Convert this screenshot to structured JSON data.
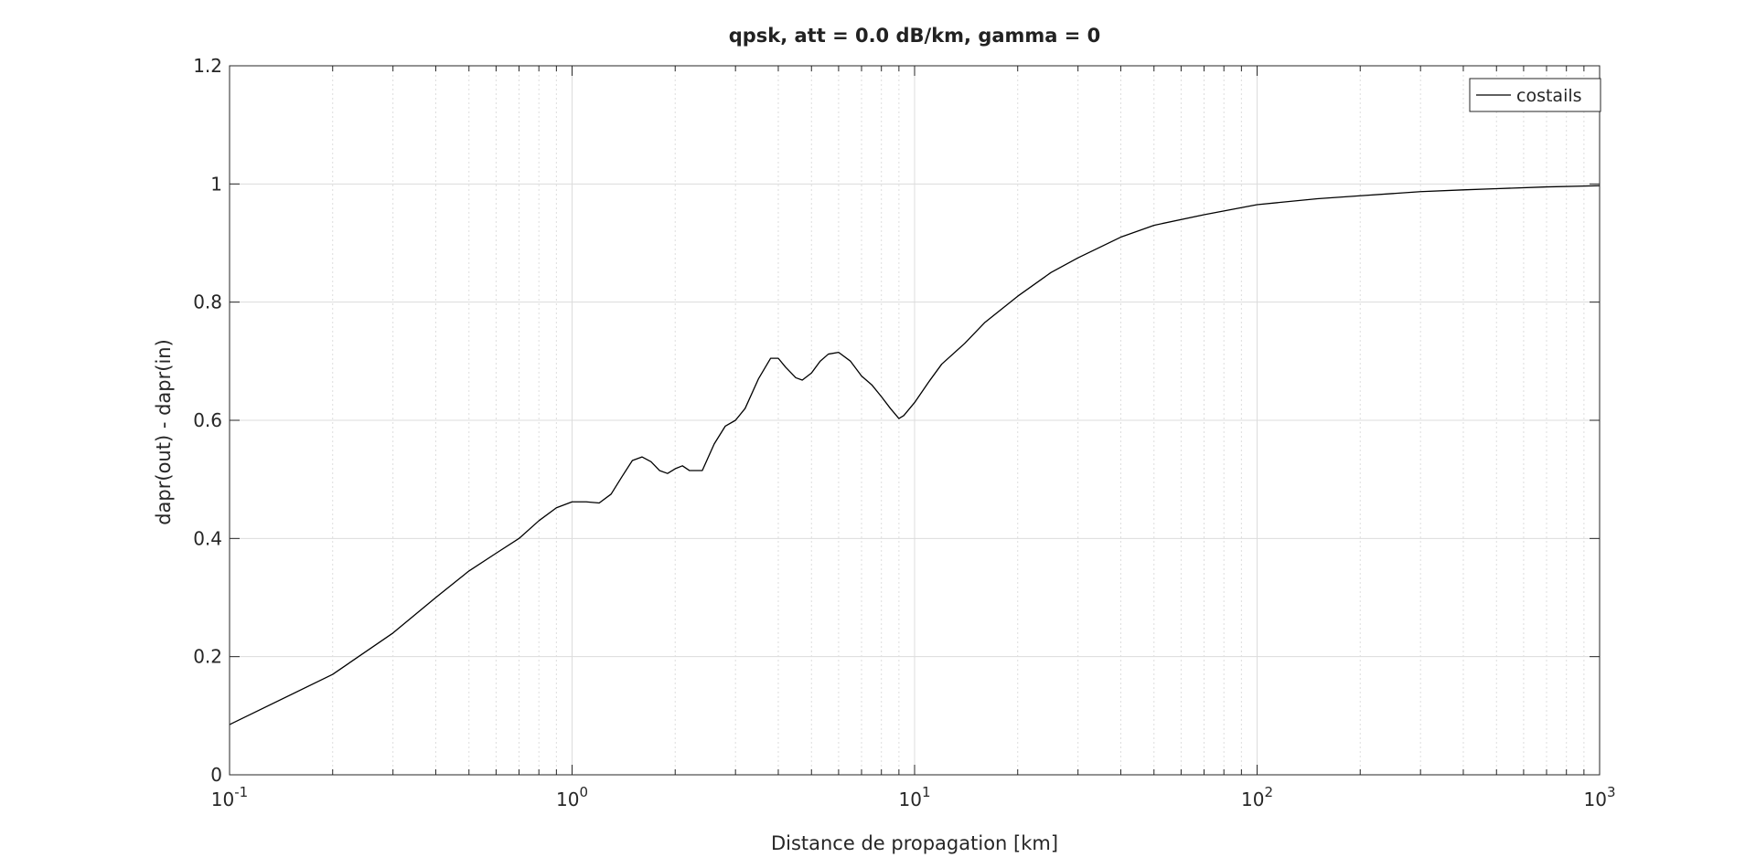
{
  "chart_data": {
    "type": "line",
    "title": "qpsk, att = 0.0 dB/km, gamma = 0",
    "xlabel": "Distance de propagation [km]",
    "ylabel": "dapr(out) - dapr(in)",
    "x_scale": "log",
    "xlim": [
      0.1,
      1000
    ],
    "ylim": [
      0,
      1.2
    ],
    "x_ticks": [
      {
        "value": 0.1,
        "base": "10",
        "exp": "-1"
      },
      {
        "value": 1,
        "base": "10",
        "exp": "0"
      },
      {
        "value": 10,
        "base": "10",
        "exp": "1"
      },
      {
        "value": 100,
        "base": "10",
        "exp": "2"
      },
      {
        "value": 1000,
        "base": "10",
        "exp": "3"
      }
    ],
    "y_ticks": [
      "0",
      "0.2",
      "0.4",
      "0.6",
      "0.8",
      "1",
      "1.2"
    ],
    "grid": true,
    "minor_grid": true,
    "legend_position": "top-right",
    "line_color": "#000000",
    "series": [
      {
        "name": "costails",
        "x": [
          0.1,
          0.2,
          0.3,
          0.4,
          0.5,
          0.6,
          0.7,
          0.8,
          0.9,
          1.0,
          1.1,
          1.2,
          1.3,
          1.4,
          1.5,
          1.6,
          1.7,
          1.8,
          1.9,
          2.0,
          2.1,
          2.2,
          2.4,
          2.6,
          2.8,
          3.0,
          3.2,
          3.5,
          3.8,
          4.0,
          4.2,
          4.5,
          4.7,
          5.0,
          5.3,
          5.6,
          6.0,
          6.5,
          7.0,
          7.5,
          8.0,
          8.5,
          9.0,
          9.3,
          10,
          11,
          12,
          14,
          16,
          20,
          25,
          30,
          40,
          50,
          70,
          100,
          150,
          200,
          300,
          400,
          500,
          700,
          1000
        ],
        "y": [
          0.085,
          0.17,
          0.24,
          0.3,
          0.345,
          0.375,
          0.4,
          0.43,
          0.452,
          0.462,
          0.462,
          0.46,
          0.475,
          0.505,
          0.532,
          0.538,
          0.53,
          0.515,
          0.51,
          0.518,
          0.523,
          0.515,
          0.515,
          0.56,
          0.59,
          0.6,
          0.62,
          0.67,
          0.705,
          0.705,
          0.69,
          0.672,
          0.668,
          0.68,
          0.7,
          0.712,
          0.715,
          0.7,
          0.675,
          0.66,
          0.64,
          0.62,
          0.603,
          0.608,
          0.63,
          0.665,
          0.695,
          0.73,
          0.765,
          0.81,
          0.85,
          0.875,
          0.91,
          0.93,
          0.948,
          0.965,
          0.975,
          0.98,
          0.987,
          0.99,
          0.992,
          0.995,
          0.997
        ]
      }
    ]
  }
}
